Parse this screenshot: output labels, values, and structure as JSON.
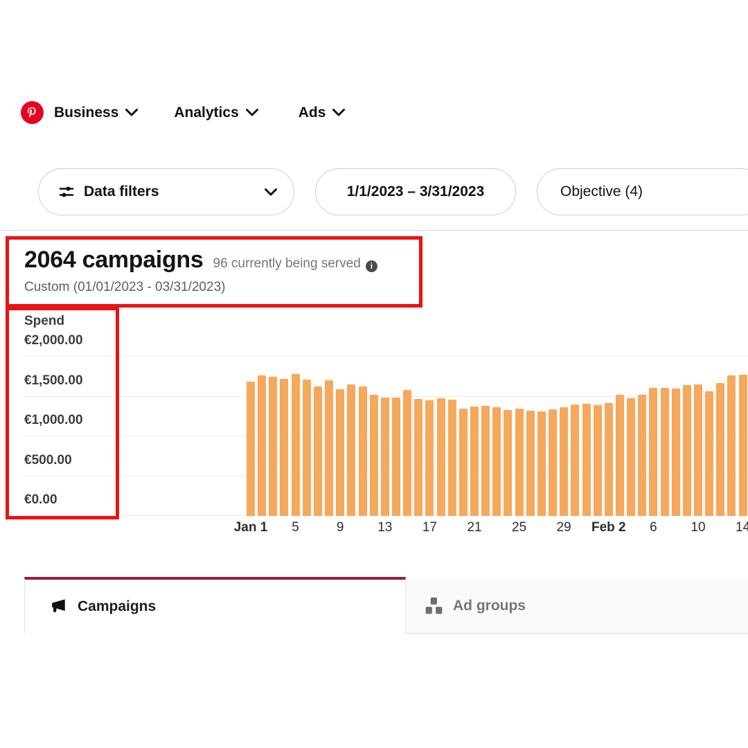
{
  "nav": {
    "items": [
      {
        "label": "Business"
      },
      {
        "label": "Analytics"
      },
      {
        "label": "Ads"
      }
    ]
  },
  "filters": {
    "data_filters_label": "Data filters",
    "date_range": "1/1/2023 – 3/31/2023",
    "objective_label": "Objective (4)"
  },
  "header": {
    "title": "2064 campaigns",
    "served_note": "96 currently being served",
    "date_custom": "Custom (01/01/2023 - 03/31/2023)"
  },
  "chart_data": {
    "type": "bar",
    "title": "Spend",
    "ylabel": "Spend",
    "ylim": [
      0,
      2000
    ],
    "grid": true,
    "y_ticks": [
      "€2,000.00",
      "€1,500.00",
      "€1,000.00",
      "€500.00",
      "€0.00"
    ],
    "x": [
      "Jan 1",
      "Jan 2",
      "Jan 3",
      "Jan 4",
      "Jan 5",
      "Jan 6",
      "Jan 7",
      "Jan 8",
      "Jan 9",
      "Jan 10",
      "Jan 11",
      "Jan 12",
      "Jan 13",
      "Jan 14",
      "Jan 15",
      "Jan 16",
      "Jan 17",
      "Jan 18",
      "Jan 19",
      "Jan 20",
      "Jan 21",
      "Jan 22",
      "Jan 23",
      "Jan 24",
      "Jan 25",
      "Jan 26",
      "Jan 27",
      "Jan 28",
      "Jan 29",
      "Jan 30",
      "Jan 31",
      "Feb 1",
      "Feb 2",
      "Feb 3",
      "Feb 4",
      "Feb 5",
      "Feb 6",
      "Feb 7",
      "Feb 8",
      "Feb 9",
      "Feb 10",
      "Feb 11",
      "Feb 12",
      "Feb 13",
      "Feb 14"
    ],
    "values": [
      1690,
      1765,
      1745,
      1720,
      1785,
      1710,
      1625,
      1705,
      1595,
      1655,
      1625,
      1525,
      1490,
      1490,
      1585,
      1470,
      1455,
      1480,
      1460,
      1350,
      1375,
      1385,
      1365,
      1335,
      1345,
      1320,
      1310,
      1340,
      1365,
      1400,
      1410,
      1390,
      1420,
      1525,
      1480,
      1525,
      1610,
      1605,
      1600,
      1640,
      1655,
      1565,
      1670,
      1765,
      1770
    ],
    "x_ticks": [
      {
        "index": 0,
        "label": "Jan 1",
        "bold": true
      },
      {
        "index": 4,
        "label": "5",
        "bold": false
      },
      {
        "index": 8,
        "label": "9",
        "bold": false
      },
      {
        "index": 12,
        "label": "13",
        "bold": false
      },
      {
        "index": 16,
        "label": "17",
        "bold": false
      },
      {
        "index": 20,
        "label": "21",
        "bold": false
      },
      {
        "index": 24,
        "label": "25",
        "bold": false
      },
      {
        "index": 28,
        "label": "29",
        "bold": false
      },
      {
        "index": 32,
        "label": "Feb 2",
        "bold": true
      },
      {
        "index": 36,
        "label": "6",
        "bold": false
      },
      {
        "index": 40,
        "label": "10",
        "bold": false
      },
      {
        "index": 44,
        "label": "14",
        "bold": false
      }
    ]
  },
  "tabs": [
    {
      "label": "Campaigns",
      "active": true
    },
    {
      "label": "Ad groups",
      "active": false
    }
  ],
  "icons": {
    "logo": "pinterest-logo",
    "data_filters": "sliders-icon",
    "nav_caret": "chevron-down-icon",
    "info_glyph": "i",
    "campaigns_tab": "megaphone-icon",
    "ad_groups_tab": "hierarchy-icon"
  },
  "colors": {
    "logo_red": "#e60023",
    "bar_orange": "#f6a85d",
    "annotation_red": "#ea1313",
    "tab_accent_red": "#9e1b36"
  }
}
